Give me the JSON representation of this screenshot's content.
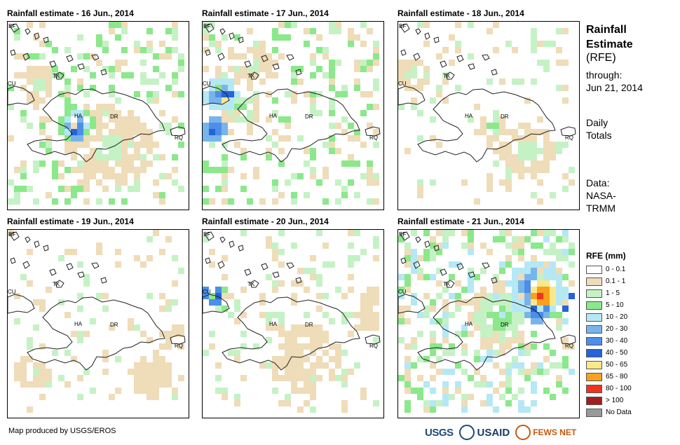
{
  "panels": [
    {
      "title": "Rainfall estimate - 16 Jun., 2014"
    },
    {
      "title": "Rainfall estimate - 17 Jun., 2014"
    },
    {
      "title": "Rainfall estimate - 18 Jun., 2014"
    },
    {
      "title": "Rainfall estimate - 19 Jun., 2014"
    },
    {
      "title": "Rainfall estimate - 20 Jun., 2014"
    },
    {
      "title": "Rainfall estimate - 21 Jun., 2014"
    }
  ],
  "map_labels": {
    "bf": "BF",
    "tk": "TK",
    "cu": "CU",
    "ha": "HA",
    "dr": "DR",
    "rq": "RQ"
  },
  "side": {
    "title_line1": "Rainfall",
    "title_line2": "Estimate",
    "title_line3": "(RFE)",
    "through": "through:",
    "date": "Jun 21, 2014",
    "daily": "Daily",
    "totals": "Totals",
    "data_label": "Data:",
    "source1": "NASA-",
    "source2": "TRMM"
  },
  "legend": {
    "title": "RFE (mm)",
    "items": [
      {
        "label": "0 - 0.1",
        "color": "#ffffff"
      },
      {
        "label": "0.1 - 1",
        "color": "#efdcb8"
      },
      {
        "label": "1 - 5",
        "color": "#c5f2c5"
      },
      {
        "label": "5 - 10",
        "color": "#8be88b"
      },
      {
        "label": "10 - 20",
        "color": "#b5e8f5"
      },
      {
        "label": "20 - 30",
        "color": "#78b4ec"
      },
      {
        "label": "30 - 40",
        "color": "#4c8ee8"
      },
      {
        "label": "40 - 50",
        "color": "#2563d9"
      },
      {
        "label": "50 - 65",
        "color": "#fbe88a"
      },
      {
        "label": "65 - 80",
        "color": "#f7a11e"
      },
      {
        "label": "80 - 100",
        "color": "#f1321c"
      },
      {
        "label": "> 100",
        "color": "#a51d1d"
      },
      {
        "label": "No Data",
        "color": "#999999"
      }
    ]
  },
  "credit": "Map produced by USGS/EROS",
  "logos": {
    "usgs": "USGS",
    "usaid": "USAID",
    "fewsnet": "FEWS NET"
  }
}
